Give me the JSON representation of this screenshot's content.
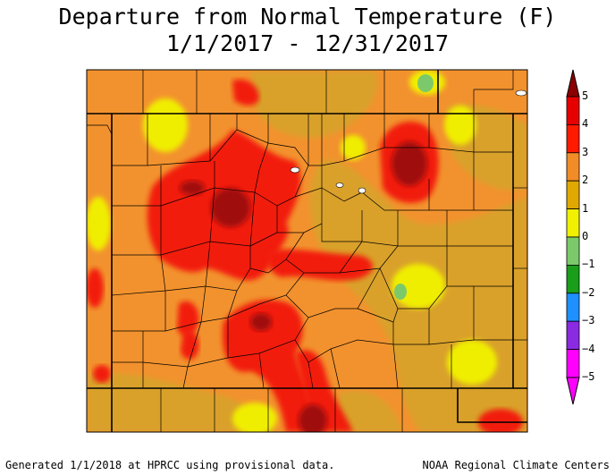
{
  "title_line1": "Departure from Normal Temperature (F)",
  "title_line2": "1/1/2017 - 12/31/2017",
  "footer_left": "Generated 1/1/2018 at HPRCC using provisional data.",
  "footer_right": "NOAA Regional Climate Centers",
  "legend": {
    "labels": [
      "5",
      "4",
      "3",
      "2",
      "1",
      "0",
      "−1",
      "−2",
      "−3",
      "−4",
      "−5"
    ],
    "colors": [
      "#8b0000",
      "#e60000",
      "#ff1a00",
      "#f28c28",
      "#e0a800",
      "#f0f000",
      "#7cc96b",
      "#1a9e1a",
      "#1e90ff",
      "#8a2be2",
      "#ff00ff"
    ]
  },
  "map_colors": {
    "base": "#d9a12b",
    "orange": "#f2922e",
    "red": "#f21a0a",
    "darkred": "#a00a0a",
    "yellow": "#f0ee00",
    "green": "#7cc96b"
  }
}
